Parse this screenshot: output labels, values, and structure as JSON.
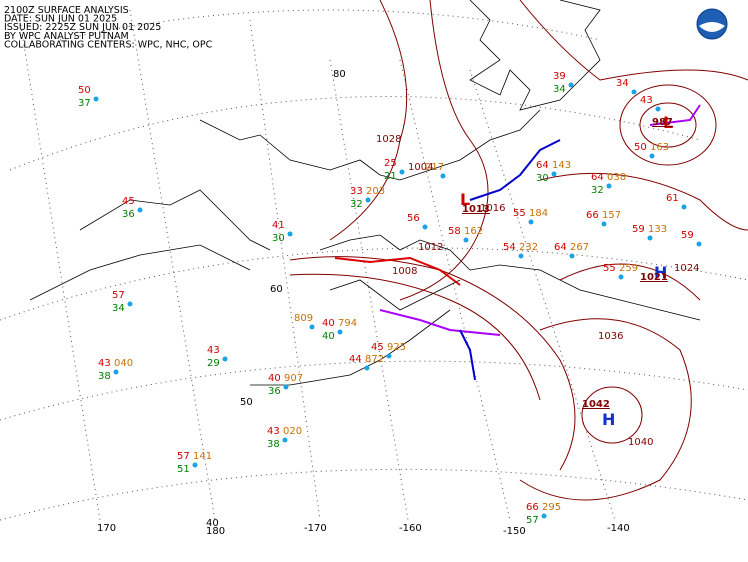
{
  "header": {
    "lines": [
      "2100Z SURFACE ANALYSIS",
      "DATE: SUN JUN 01 2025",
      "ISSUED: 2225Z SUN JUN 01 2025",
      "BY WPC ANALYST PUTNAM",
      "COLLABORATING CENTERS: WPC, NHC, OPC"
    ]
  },
  "graticule": {
    "latitudes": [
      "80",
      "60",
      "50",
      "40"
    ],
    "longitudes": [
      "170",
      "180",
      "-170",
      "-160",
      "-150",
      "-140"
    ]
  },
  "pressure_centers": [
    {
      "symbol": "H",
      "value": "1042"
    },
    {
      "symbol": "H",
      "value": "1021"
    },
    {
      "symbol": "L",
      "value": "1013"
    },
    {
      "symbol": "L",
      "value": "987"
    }
  ],
  "isobar_labels": [
    "1028",
    "1024",
    "1036",
    "1040",
    "1016",
    "1012",
    "1008",
    "1004"
  ],
  "stations": [
    {
      "temp": "50",
      "dew": "37"
    },
    {
      "temp": "45",
      "dew": "36"
    },
    {
      "temp": "57",
      "dew": "34"
    },
    {
      "temp": "43",
      "pressure": "040",
      "dew": "38"
    },
    {
      "temp": "43",
      "dew": "29"
    },
    {
      "temp": "40",
      "pressure": "907",
      "dew": "36"
    },
    {
      "temp": "43",
      "pressure": "020",
      "dew": "38"
    },
    {
      "temp": "57",
      "pressure": "141",
      "dew": "51"
    },
    {
      "temp": "40",
      "pressure": "794",
      "dew": "40"
    },
    {
      "temp": "44",
      "pressure": "872"
    },
    {
      "temp": "45",
      "pressure": "925"
    },
    {
      "pressure": "809"
    },
    {
      "temp": "41",
      "dew": "30"
    },
    {
      "temp": "33",
      "pressure": "203",
      "dew": "32"
    },
    {
      "temp": "25",
      "dew": "21"
    },
    {
      "pressure": "217"
    },
    {
      "temp": "56"
    },
    {
      "temp": "58",
      "pressure": "162"
    },
    {
      "temp": "54",
      "pressure": "232"
    },
    {
      "temp": "64",
      "pressure": "267"
    },
    {
      "temp": "64",
      "pressure": "038",
      "dew": "32"
    },
    {
      "temp": "66",
      "pressure": "157"
    },
    {
      "temp": "59",
      "pressure": "133"
    },
    {
      "temp": "55",
      "pressure": "259"
    },
    {
      "temp": "50",
      "pressure": "163"
    },
    {
      "temp": "43"
    },
    {
      "temp": "61"
    },
    {
      "temp": "59"
    },
    {
      "temp": "66",
      "pressure": "295",
      "dew": "57"
    },
    {
      "temp": "55",
      "pressure": "184"
    },
    {
      "temp": "64",
      "pressure": "143",
      "dew": "30"
    },
    {
      "temp": "39",
      "dew": "34"
    },
    {
      "temp": "34"
    }
  ]
}
